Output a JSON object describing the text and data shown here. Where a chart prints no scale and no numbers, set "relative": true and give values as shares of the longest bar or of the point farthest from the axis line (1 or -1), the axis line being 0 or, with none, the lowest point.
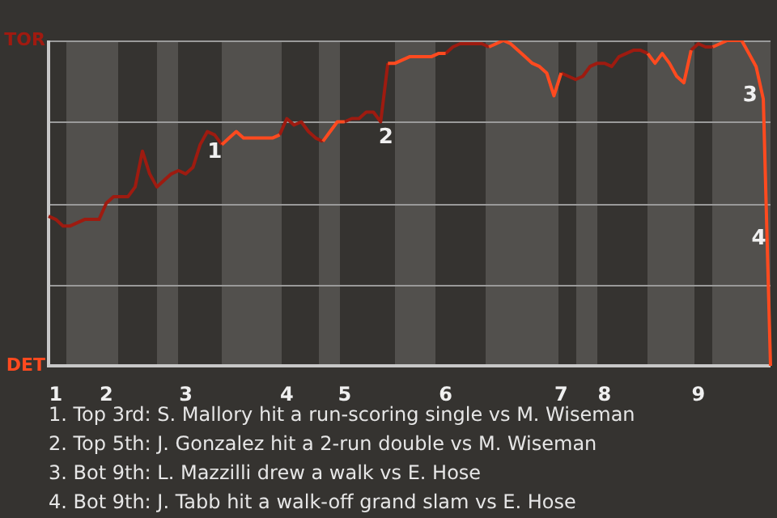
{
  "chart_data": {
    "type": "line",
    "relative": true,
    "categories": [
      null,
      "1",
      null,
      null,
      null,
      null,
      null,
      null,
      "2",
      null,
      null,
      null,
      null,
      null,
      null,
      null,
      null,
      null,
      null,
      "3",
      null,
      null,
      null,
      null,
      null,
      null,
      null,
      null,
      null,
      null,
      null,
      null,
      null,
      "4",
      null,
      null,
      null,
      null,
      null,
      null,
      null,
      "5",
      null,
      null,
      null,
      null,
      null,
      null,
      null,
      null,
      null,
      null,
      null,
      null,
      null,
      "6",
      null,
      null,
      null,
      null,
      null,
      null,
      null,
      null,
      null,
      null,
      null,
      null,
      null,
      null,
      null,
      "7",
      null,
      null,
      null,
      null,
      null,
      "8",
      null,
      null,
      null,
      null,
      null,
      null,
      null,
      null,
      null,
      null,
      null,
      null,
      "9",
      null,
      null,
      null,
      null,
      null,
      null,
      null,
      null,
      null,
      null
    ],
    "series": [
      {
        "color": "#9e1b10",
        "values": [
          0.46,
          0.45,
          0.43,
          0.43,
          0.44,
          0.45,
          0.45,
          0.45,
          0.5,
          0.52,
          0.52,
          0.52,
          0.55,
          0.66,
          0.59,
          0.55,
          0.57,
          0.59,
          0.6,
          0.59,
          0.61,
          0.68,
          0.72,
          0.71,
          0.68,
          null,
          null,
          null,
          null,
          null,
          null,
          null,
          0.71,
          0.76,
          0.74,
          0.75,
          0.72,
          0.7,
          0.69,
          null,
          null,
          0.75,
          0.76,
          0.76,
          0.78,
          0.78,
          0.75,
          0.93,
          null,
          null,
          null,
          null,
          null,
          null,
          null,
          0.96,
          0.98,
          0.99,
          0.99,
          0.99,
          0.99,
          0.98,
          null,
          null,
          null,
          null,
          null,
          null,
          null,
          null,
          null,
          0.9,
          0.89,
          0.88,
          0.89,
          0.92,
          0.93,
          0.93,
          0.92,
          0.95,
          0.96,
          0.97,
          0.97,
          0.96,
          null,
          null,
          null,
          null,
          null,
          0.97,
          0.99,
          0.98,
          0.98,
          null,
          null,
          null,
          null,
          null,
          null,
          null,
          null
        ]
      },
      {
        "color": "#ff4a1f",
        "values": [
          null,
          null,
          null,
          null,
          null,
          null,
          null,
          null,
          null,
          null,
          null,
          null,
          null,
          null,
          null,
          null,
          null,
          null,
          null,
          null,
          null,
          null,
          null,
          null,
          0.68,
          0.7,
          0.72,
          0.7,
          0.7,
          0.7,
          0.7,
          0.7,
          0.71,
          null,
          null,
          null,
          null,
          null,
          0.69,
          0.72,
          0.75,
          0.75,
          null,
          null,
          null,
          null,
          null,
          0.93,
          0.93,
          0.94,
          0.95,
          0.95,
          0.95,
          0.95,
          0.96,
          0.96,
          null,
          null,
          null,
          null,
          null,
          0.98,
          0.99,
          1,
          0.99,
          0.97,
          0.95,
          0.93,
          0.92,
          0.9,
          0.83,
          0.9,
          null,
          null,
          null,
          null,
          null,
          null,
          null,
          null,
          null,
          null,
          null,
          0.96,
          0.93,
          0.96,
          0.93,
          0.89,
          0.87,
          0.97,
          null,
          null,
          0.98,
          0.99,
          1,
          1,
          1,
          0.96,
          0.92,
          0.82,
          0
        ]
      }
    ],
    "marker": "none",
    "line_style": "solid",
    "legend": false,
    "ref_lines": [
      {
        "axis": "y",
        "value": 0.25,
        "color": "#9a9a9a"
      },
      {
        "axis": "y",
        "value": 0.5,
        "color": "#9a9a9a"
      },
      {
        "axis": "y",
        "value": 0.75,
        "color": "#9a9a9a"
      },
      {
        "axis": "y",
        "value": 1,
        "color": "#9a9a9a"
      }
    ],
    "annotations": [
      "TOR",
      "DET",
      "1",
      "2",
      "3",
      "4",
      "1. Top 3rd: S. Mallory hit a run-scoring single vs M. Wiseman",
      "2. Top 5th: J. Gonzalez hit a 2-run double vs M. Wiseman",
      "3. Bot 9th: L. Mazzilli drew a walk vs E. Hose",
      "4. Bot 9th: J. Tabb hit a walk-off grand slam vs E. Hose"
    ]
  }
}
